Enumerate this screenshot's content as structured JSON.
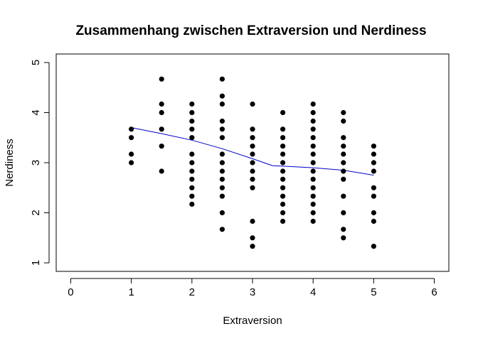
{
  "chart_data": {
    "type": "scatter",
    "title": "Zusammenhang zwischen Extraversion und Nerdiness",
    "xlabel": "Extraversion",
    "ylabel": "Nerdiness",
    "xlim": [
      -0.24,
      6.24
    ],
    "ylim": [
      0.83,
      5.17
    ],
    "xticks": [
      "0",
      "1",
      "2",
      "3",
      "4",
      "5",
      "6"
    ],
    "yticks": [
      "1",
      "2",
      "3",
      "4",
      "5"
    ],
    "grid": false,
    "legend": "none",
    "point_color": "#000000",
    "line_color": "#0000CC",
    "points": [
      {
        "x": 1,
        "y": 3.67
      },
      {
        "x": 1,
        "y": 3.5
      },
      {
        "x": 1,
        "y": 3.17
      },
      {
        "x": 1,
        "y": 3.0
      },
      {
        "x": 1.5,
        "y": 4.67
      },
      {
        "x": 1.5,
        "y": 4.17
      },
      {
        "x": 1.5,
        "y": 4.0
      },
      {
        "x": 1.5,
        "y": 3.67
      },
      {
        "x": 1.5,
        "y": 3.33
      },
      {
        "x": 1.5,
        "y": 2.83
      },
      {
        "x": 2,
        "y": 4.17
      },
      {
        "x": 2,
        "y": 4.0
      },
      {
        "x": 2,
        "y": 3.83
      },
      {
        "x": 2,
        "y": 3.67
      },
      {
        "x": 2,
        "y": 3.5
      },
      {
        "x": 2,
        "y": 3.17
      },
      {
        "x": 2,
        "y": 3.0
      },
      {
        "x": 2,
        "y": 2.83
      },
      {
        "x": 2,
        "y": 2.67
      },
      {
        "x": 2,
        "y": 2.5
      },
      {
        "x": 2,
        "y": 2.33
      },
      {
        "x": 2,
        "y": 2.17
      },
      {
        "x": 2.5,
        "y": 4.67
      },
      {
        "x": 2.5,
        "y": 4.33
      },
      {
        "x": 2.5,
        "y": 4.17
      },
      {
        "x": 2.5,
        "y": 3.83
      },
      {
        "x": 2.5,
        "y": 3.67
      },
      {
        "x": 2.5,
        "y": 3.5
      },
      {
        "x": 2.5,
        "y": 3.17
      },
      {
        "x": 2.5,
        "y": 3.0
      },
      {
        "x": 2.5,
        "y": 2.83
      },
      {
        "x": 2.5,
        "y": 2.67
      },
      {
        "x": 2.5,
        "y": 2.5
      },
      {
        "x": 2.5,
        "y": 2.33
      },
      {
        "x": 2.5,
        "y": 2.0
      },
      {
        "x": 2.5,
        "y": 1.67
      },
      {
        "x": 3,
        "y": 4.17
      },
      {
        "x": 3,
        "y": 3.67
      },
      {
        "x": 3,
        "y": 3.5
      },
      {
        "x": 3,
        "y": 3.33
      },
      {
        "x": 3,
        "y": 3.17
      },
      {
        "x": 3,
        "y": 3.0
      },
      {
        "x": 3,
        "y": 2.83
      },
      {
        "x": 3,
        "y": 2.67
      },
      {
        "x": 3,
        "y": 2.5
      },
      {
        "x": 3,
        "y": 1.83
      },
      {
        "x": 3,
        "y": 1.5
      },
      {
        "x": 3,
        "y": 1.33
      },
      {
        "x": 3.5,
        "y": 4.0
      },
      {
        "x": 3.5,
        "y": 3.67
      },
      {
        "x": 3.5,
        "y": 3.5
      },
      {
        "x": 3.5,
        "y": 3.33
      },
      {
        "x": 3.5,
        "y": 3.17
      },
      {
        "x": 3.5,
        "y": 3.0
      },
      {
        "x": 3.5,
        "y": 2.83
      },
      {
        "x": 3.5,
        "y": 2.67
      },
      {
        "x": 3.5,
        "y": 2.5
      },
      {
        "x": 3.5,
        "y": 2.33
      },
      {
        "x": 3.5,
        "y": 2.17
      },
      {
        "x": 3.5,
        "y": 2.0
      },
      {
        "x": 3.5,
        "y": 1.83
      },
      {
        "x": 4,
        "y": 4.17
      },
      {
        "x": 4,
        "y": 4.0
      },
      {
        "x": 4,
        "y": 3.83
      },
      {
        "x": 4,
        "y": 3.67
      },
      {
        "x": 4,
        "y": 3.5
      },
      {
        "x": 4,
        "y": 3.33
      },
      {
        "x": 4,
        "y": 3.17
      },
      {
        "x": 4,
        "y": 3.0
      },
      {
        "x": 4,
        "y": 2.83
      },
      {
        "x": 4,
        "y": 2.67
      },
      {
        "x": 4,
        "y": 2.5
      },
      {
        "x": 4,
        "y": 2.33
      },
      {
        "x": 4,
        "y": 2.17
      },
      {
        "x": 4,
        "y": 2.0
      },
      {
        "x": 4,
        "y": 1.83
      },
      {
        "x": 4.5,
        "y": 4.0
      },
      {
        "x": 4.5,
        "y": 3.83
      },
      {
        "x": 4.5,
        "y": 3.5
      },
      {
        "x": 4.5,
        "y": 3.33
      },
      {
        "x": 4.5,
        "y": 3.17
      },
      {
        "x": 4.5,
        "y": 3.0
      },
      {
        "x": 4.5,
        "y": 2.83
      },
      {
        "x": 4.5,
        "y": 2.67
      },
      {
        "x": 4.5,
        "y": 2.33
      },
      {
        "x": 4.5,
        "y": 2.0
      },
      {
        "x": 4.5,
        "y": 1.67
      },
      {
        "x": 4.5,
        "y": 1.5
      },
      {
        "x": 5,
        "y": 3.33
      },
      {
        "x": 5,
        "y": 3.17
      },
      {
        "x": 5,
        "y": 3.0
      },
      {
        "x": 5,
        "y": 2.83
      },
      {
        "x": 5,
        "y": 2.5
      },
      {
        "x": 5,
        "y": 2.33
      },
      {
        "x": 5,
        "y": 2.0
      },
      {
        "x": 5,
        "y": 1.83
      },
      {
        "x": 5,
        "y": 1.33
      }
    ],
    "smooth_line": {
      "x": [
        1.0,
        1.5,
        2.0,
        2.5,
        3.0,
        3.33,
        3.5,
        4.0,
        4.5,
        5.0
      ],
      "y": [
        3.7,
        3.58,
        3.45,
        3.28,
        3.08,
        2.94,
        2.93,
        2.9,
        2.85,
        2.75
      ]
    }
  }
}
